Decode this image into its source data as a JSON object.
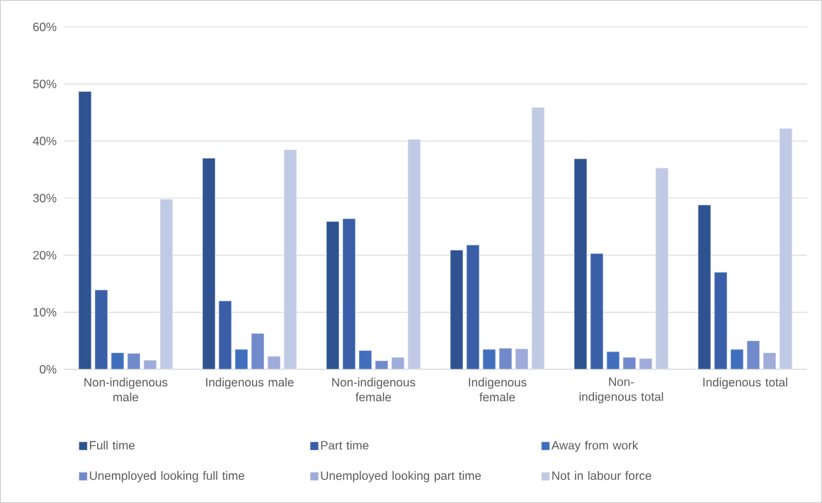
{
  "chart_data": {
    "type": "bar",
    "categories": [
      "Non-indigenous male",
      "Indigenous male",
      "Non-indigenous female",
      "Indigenous female",
      "Non-indigenous total",
      "Indigenous total"
    ],
    "series": [
      {
        "name": "Full time",
        "color": "#2f5391",
        "values": [
          48.7,
          37.0,
          25.9,
          20.9,
          36.9,
          28.8
        ]
      },
      {
        "name": "Part time",
        "color": "#3a5fa8",
        "values": [
          13.9,
          12.0,
          26.4,
          21.8,
          20.3,
          17.0
        ]
      },
      {
        "name": "Away from work",
        "color": "#416fbd",
        "values": [
          2.9,
          3.5,
          3.3,
          3.5,
          3.1,
          3.5
        ]
      },
      {
        "name": "Unemployed looking full time",
        "color": "#718acb",
        "values": [
          2.8,
          6.3,
          1.5,
          3.7,
          2.1,
          5.0
        ]
      },
      {
        "name": "Unemployed looking part time",
        "color": "#9facd9",
        "values": [
          1.6,
          2.3,
          2.1,
          3.6,
          1.9,
          2.9
        ]
      },
      {
        "name": "Not in labour force",
        "color": "#c0cae4",
        "values": [
          29.8,
          38.5,
          40.3,
          45.9,
          35.3,
          42.2
        ]
      }
    ],
    "ylim": [
      0,
      60
    ],
    "yticks": [
      {
        "value": 0,
        "label": "0%"
      },
      {
        "value": 10,
        "label": "10%"
      },
      {
        "value": 20,
        "label": "20%"
      },
      {
        "value": 30,
        "label": "30%"
      },
      {
        "value": 40,
        "label": "40%"
      },
      {
        "value": 50,
        "label": "50%"
      },
      {
        "value": 60,
        "label": "60%"
      }
    ],
    "grid": "y",
    "legend": "bottom"
  }
}
